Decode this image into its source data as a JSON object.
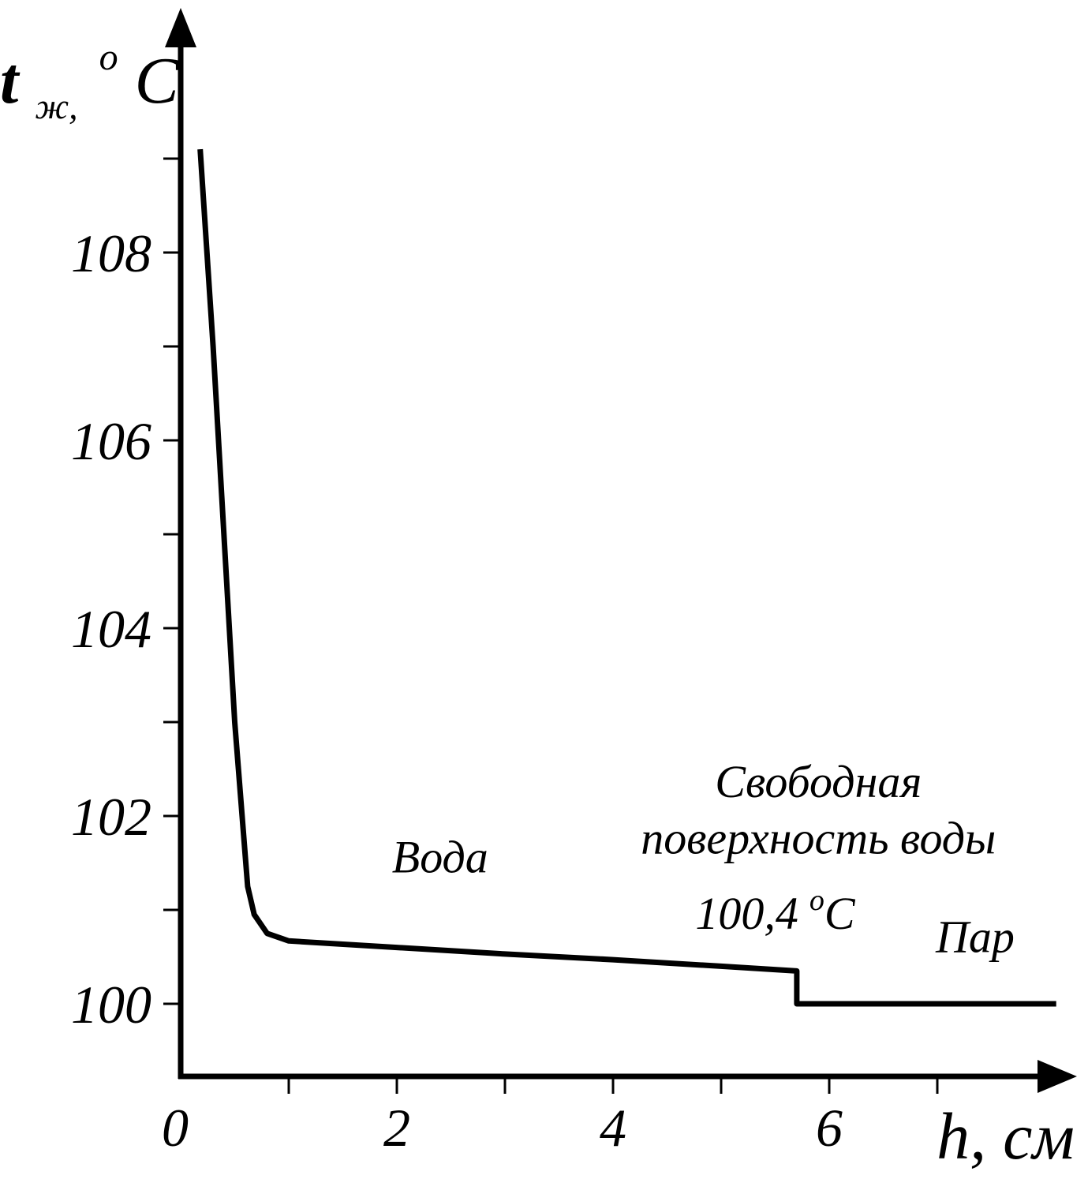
{
  "chart_data": {
    "type": "line",
    "title": "",
    "ylabel": {
      "main": "t",
      "subscript": "ж,",
      "unit_sup": "o",
      "unit": "C"
    },
    "xlabel": "h, см",
    "x_ticks": [
      "0",
      "2",
      "4",
      "6"
    ],
    "y_ticks": [
      "100",
      "102",
      "104",
      "106",
      "108"
    ],
    "xlim": [
      0,
      8
    ],
    "ylim": [
      99.2,
      110.8
    ],
    "grid": false,
    "series": [
      {
        "values": [
          {
            "x": 0.18,
            "y": 109.1
          },
          {
            "x": 0.3,
            "y": 107.0
          },
          {
            "x": 0.4,
            "y": 105.0
          },
          {
            "x": 0.5,
            "y": 103.0
          },
          {
            "x": 0.62,
            "y": 101.25
          },
          {
            "x": 0.68,
            "y": 100.95
          },
          {
            "x": 0.8,
            "y": 100.75
          },
          {
            "x": 1.0,
            "y": 100.67
          },
          {
            "x": 2.0,
            "y": 100.6
          },
          {
            "x": 3.0,
            "y": 100.53
          },
          {
            "x": 4.0,
            "y": 100.47
          },
          {
            "x": 5.0,
            "y": 100.4
          },
          {
            "x": 5.7,
            "y": 100.35
          },
          {
            "x": 5.7,
            "y": 100.0
          },
          {
            "x": 8.1,
            "y": 100.0
          }
        ]
      }
    ],
    "annotations": [
      {
        "id": "water",
        "text": "Вода",
        "x": 2.4,
        "y": 101.4
      },
      {
        "id": "surface-1",
        "text": "Свободная",
        "x": 5.9,
        "y": 102.2
      },
      {
        "id": "surface-2",
        "text": "поверхность воды",
        "x": 5.9,
        "y": 101.6
      },
      {
        "id": "surface-temp",
        "text": "100,4",
        "sup": "o",
        "unit": "C",
        "x": 5.5,
        "y": 100.8
      },
      {
        "id": "steam",
        "text": "Пар",
        "x": 7.35,
        "y": 100.55
      }
    ]
  }
}
